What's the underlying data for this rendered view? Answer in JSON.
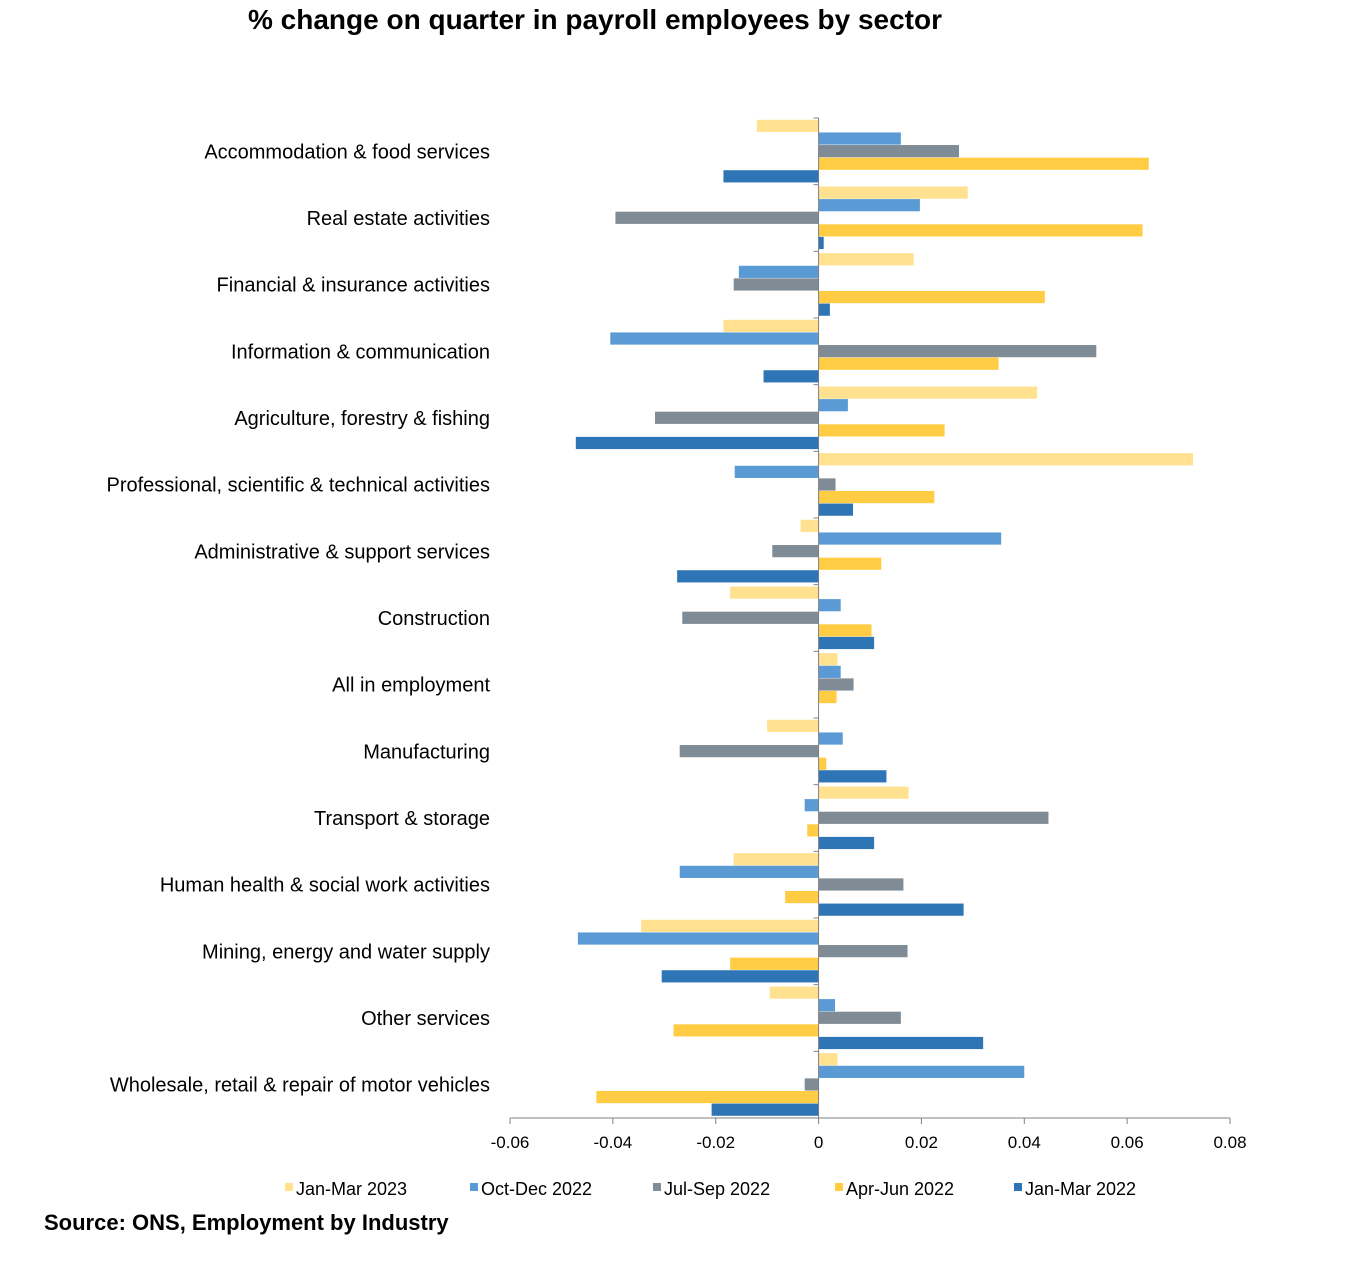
{
  "chart_data": {
    "type": "bar",
    "orientation": "horizontal",
    "title": "% change on quarter in payroll employees by sector",
    "xlim": [
      -0.06,
      0.08
    ],
    "x_ticks": [
      "-0.06",
      "-0.04",
      "-0.02",
      "0",
      "0.02",
      "0.04",
      "0.06",
      "0.08"
    ],
    "x_tick_values": [
      -0.06,
      -0.04,
      -0.02,
      0,
      0.02,
      0.04,
      0.06,
      0.08
    ],
    "legend_position": "bottom",
    "categories": [
      "Accommodation & food services",
      "Real estate activities",
      "Financial & insurance activities",
      "Information & communication",
      "Agriculture, forestry & fishing",
      "Professional, scientific & technical activities",
      "Administrative & support services",
      "Construction",
      "All in employment",
      "Manufacturing",
      "Transport & storage",
      "Human health & social work activities",
      "Mining, energy and water supply",
      "Other services",
      "Wholesale, retail & repair of motor vehicles"
    ],
    "series": [
      {
        "name": "Jan-Mar 2023",
        "color": "#FFE18F",
        "values": [
          -0.012,
          0.029,
          0.0185,
          -0.0185,
          0.0425,
          0.0728,
          -0.0035,
          -0.0172,
          0.0037,
          -0.01,
          0.0175,
          -0.0165,
          -0.0345,
          -0.0095,
          0.0037
        ]
      },
      {
        "name": "Oct-Dec 2022",
        "color": "#5B9BD5",
        "values": [
          0.016,
          0.0197,
          -0.0155,
          -0.0405,
          0.0057,
          -0.0163,
          0.0355,
          0.0043,
          0.0043,
          0.0047,
          -0.0027,
          -0.027,
          -0.0468,
          0.0032,
          0.04
        ]
      },
      {
        "name": "Jul-Sep 2022",
        "color": "#7F8C96",
        "values": [
          0.0273,
          -0.0395,
          -0.0165,
          0.054,
          -0.0318,
          0.0033,
          -0.009,
          -0.0265,
          0.0068,
          -0.027,
          0.0447,
          0.0165,
          0.0173,
          0.016,
          -0.0027
        ]
      },
      {
        "name": "Apr-Jun 2022",
        "color": "#FFCC44",
        "values": [
          0.0642,
          0.063,
          0.044,
          0.035,
          0.0245,
          0.0225,
          0.0122,
          0.0103,
          0.0035,
          0.0015,
          -0.0022,
          -0.0065,
          -0.0172,
          -0.0282,
          -0.0432
        ]
      },
      {
        "name": "Jan-Mar 2022",
        "color": "#2E75B6",
        "values": [
          -0.0185,
          0.001,
          0.0022,
          -0.0107,
          -0.0472,
          0.0067,
          -0.0275,
          0.0108,
          null,
          0.0132,
          0.0108,
          0.0282,
          -0.0305,
          0.032,
          -0.0208
        ]
      }
    ]
  },
  "source_note": "Source: ONS, Employment by Industry"
}
